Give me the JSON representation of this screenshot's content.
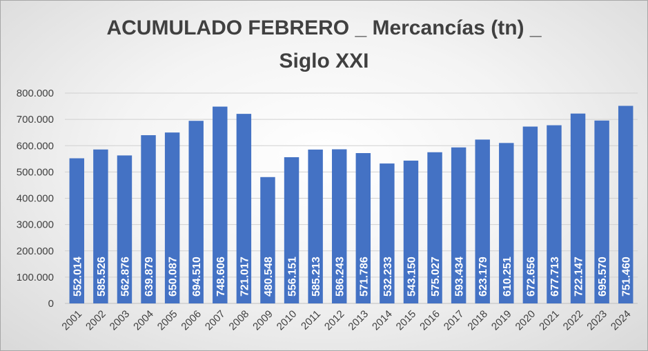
{
  "chart_data": {
    "type": "bar",
    "title_lines": [
      "ACUMULADO  FEBRERO _ Mercancías (tn) _",
      "Siglo XXI"
    ],
    "xlabel": "",
    "ylabel": "",
    "categories": [
      "2001",
      "2002",
      "2003",
      "2004",
      "2005",
      "2006",
      "2007",
      "2008",
      "2009",
      "2010",
      "2011",
      "2012",
      "2013",
      "2014",
      "2015",
      "2016",
      "2017",
      "2018",
      "2019",
      "2020",
      "2021",
      "2022",
      "2023",
      "2024"
    ],
    "values": [
      552014,
      585526,
      562876,
      639879,
      650087,
      694510,
      748606,
      721017,
      480548,
      556151,
      585213,
      586243,
      571786,
      532233,
      543150,
      575027,
      593434,
      623179,
      610251,
      672656,
      677713,
      722147,
      695570,
      751460
    ],
    "data_labels": [
      "552.014",
      "585.526",
      "562.876",
      "639.879",
      "650.087",
      "694.510",
      "748.606",
      "721.017",
      "480.548",
      "556.151",
      "585.213",
      "586.243",
      "571.786",
      "532.233",
      "543.150",
      "575.027",
      "593.434",
      "623.179",
      "610.251",
      "672.656",
      "677.713",
      "722.147",
      "695.570",
      "751.460"
    ],
    "ylim": [
      0,
      800000
    ],
    "y_ticks": [
      0,
      100000,
      200000,
      300000,
      400000,
      500000,
      600000,
      700000,
      800000
    ],
    "y_tick_labels": [
      "0",
      "100.000",
      "200.000",
      "300.000",
      "400.000",
      "500.000",
      "600.000",
      "700.000",
      "800.000"
    ],
    "grid": true,
    "legend": "none",
    "bar_color": "#4472c4"
  }
}
